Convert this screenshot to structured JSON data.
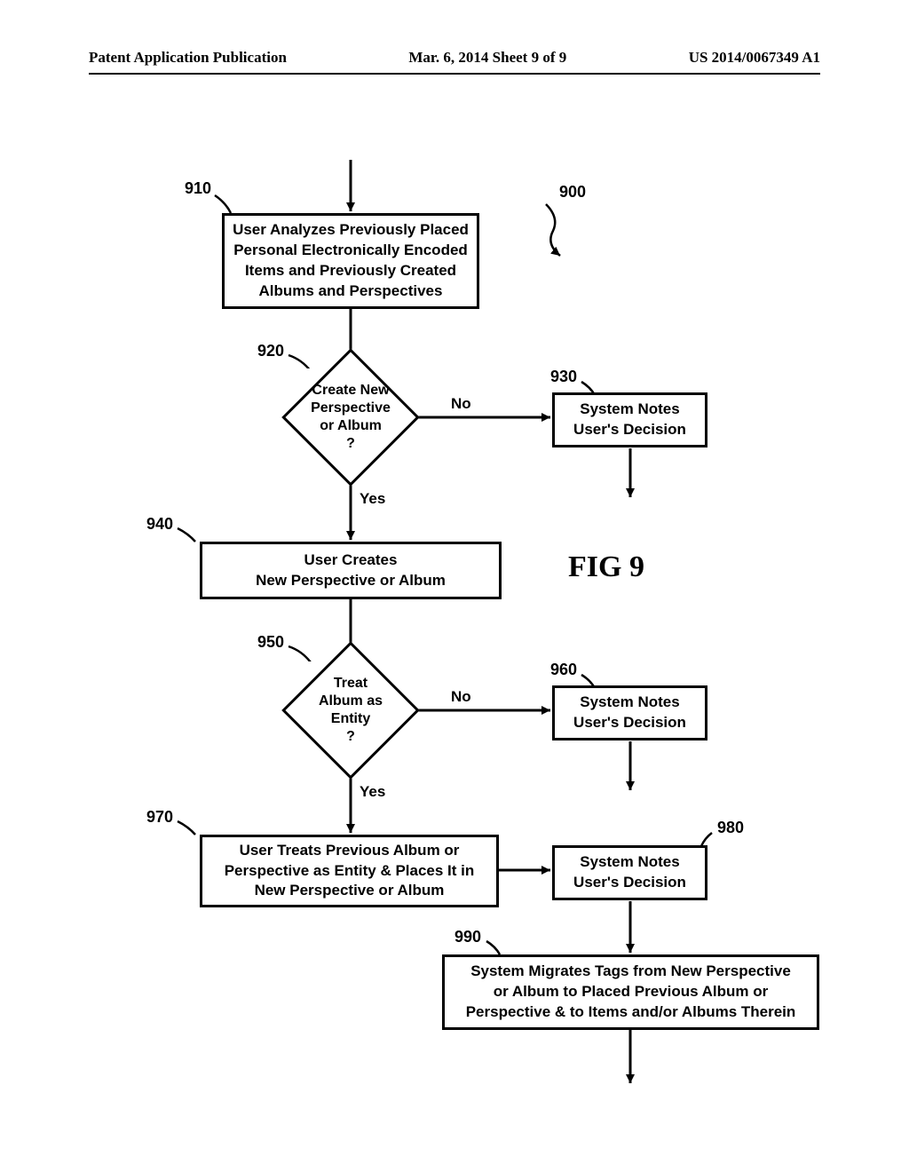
{
  "header": {
    "left": "Patent Application Publication",
    "center": "Mar. 6, 2014  Sheet 9 of 9",
    "right": "US 2014/0067349 A1"
  },
  "figure_label": "FIG 9",
  "figure_ref": "900",
  "nodes": {
    "n910": {
      "ref": "910",
      "text": "User Analyzes Previously Placed\nPersonal Electronically Encoded\nItems and Previously Created\nAlbums and Perspectives"
    },
    "n920": {
      "ref": "920",
      "text": "Create New\nPerspective\nor Album\n?"
    },
    "n930": {
      "ref": "930",
      "text": "System Notes\nUser's Decision"
    },
    "n940": {
      "ref": "940",
      "text": "User Creates\nNew Perspective or Album"
    },
    "n950": {
      "ref": "950",
      "text": "Treat\nAlbum as\nEntity\n?"
    },
    "n960": {
      "ref": "960",
      "text": "System Notes\nUser's Decision"
    },
    "n970": {
      "ref": "970",
      "text": "User Treats Previous Album or\nPerspective as Entity & Places It in\nNew Perspective or Album"
    },
    "n980": {
      "ref": "980",
      "text": "System Notes\nUser's Decision"
    },
    "n990": {
      "ref": "990",
      "text": "System Migrates Tags from New Perspective\nor Album to Placed Previous Album or\nPerspective & to Items and/or Albums Therein"
    }
  },
  "edges": {
    "yes": "Yes",
    "no": "No"
  },
  "style": {
    "stroke": "#000000",
    "stroke_width": 3,
    "arrow_size": 12,
    "font_size": 17,
    "diamond_font_size": 16,
    "label_font_size": 18,
    "fig_font_size": 34,
    "background": "#ffffff"
  }
}
